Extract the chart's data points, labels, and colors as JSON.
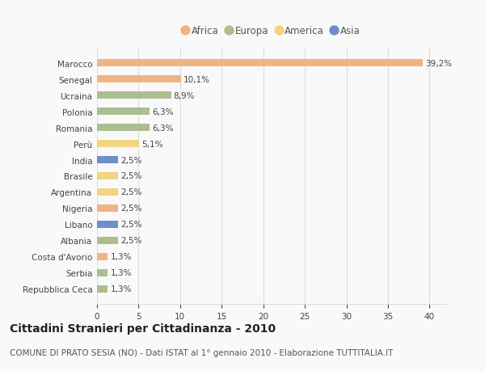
{
  "countries": [
    "Marocco",
    "Senegal",
    "Ucraina",
    "Polonia",
    "Romania",
    "Perù",
    "India",
    "Brasile",
    "Argentina",
    "Nigeria",
    "Libano",
    "Albania",
    "Costa d'Avorio",
    "Serbia",
    "Repubblica Ceca"
  ],
  "values": [
    39.2,
    10.1,
    8.9,
    6.3,
    6.3,
    5.1,
    2.5,
    2.5,
    2.5,
    2.5,
    2.5,
    2.5,
    1.3,
    1.3,
    1.3
  ],
  "labels": [
    "39,2%",
    "10,1%",
    "8,9%",
    "6,3%",
    "6,3%",
    "5,1%",
    "2,5%",
    "2,5%",
    "2,5%",
    "2,5%",
    "2,5%",
    "2,5%",
    "1,3%",
    "1,3%",
    "1,3%"
  ],
  "continent": [
    "Africa",
    "Africa",
    "Europa",
    "Europa",
    "Europa",
    "America",
    "Asia",
    "America",
    "America",
    "Africa",
    "Asia",
    "Europa",
    "Africa",
    "Europa",
    "Europa"
  ],
  "colors": {
    "Africa": "#F0B482",
    "Europa": "#ABBE90",
    "America": "#F2D580",
    "Asia": "#6B90C8"
  },
  "legend_order": [
    "Africa",
    "Europa",
    "America",
    "Asia"
  ],
  "title": "Cittadini Stranieri per Cittadinanza - 2010",
  "subtitle": "COMUNE DI PRATO SESIA (NO) - Dati ISTAT al 1° gennaio 2010 - Elaborazione TUTTITALIA.IT",
  "xlim": [
    0,
    42
  ],
  "xticks": [
    0,
    5,
    10,
    15,
    20,
    25,
    30,
    35,
    40
  ],
  "background_color": "#f9f9f9",
  "grid_color": "#dddddd",
  "title_fontsize": 10,
  "subtitle_fontsize": 7.5,
  "bar_label_fontsize": 7.5,
  "tick_label_fontsize": 7.5,
  "legend_fontsize": 8.5
}
